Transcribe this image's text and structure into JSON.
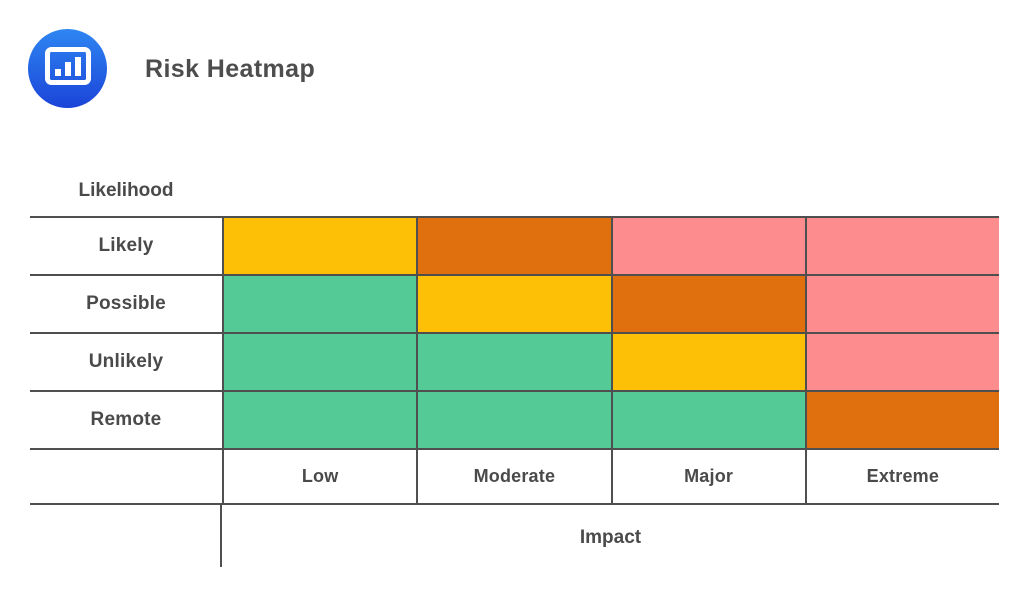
{
  "header": {
    "title": "Risk Heatmap"
  },
  "logo": {
    "icon": "bar-chart-icon",
    "gradient_top": "#2e86f2",
    "gradient_bottom": "#1b44d8",
    "glyph_color": "#ffffff"
  },
  "chart_data": {
    "type": "heatmap",
    "title": "Risk Heatmap",
    "xlabel": "Impact",
    "ylabel": "Likelihood",
    "x_categories": [
      "Low",
      "Moderate",
      "Major",
      "Extreme"
    ],
    "y_categories": [
      "Likely",
      "Possible",
      "Unlikely",
      "Remote"
    ],
    "cells": [
      [
        "medium",
        "high",
        "very-high",
        "very-high"
      ],
      [
        "low",
        "medium",
        "high",
        "very-high"
      ],
      [
        "low",
        "low",
        "medium",
        "very-high"
      ],
      [
        "low",
        "low",
        "low",
        "high"
      ]
    ],
    "palette": {
      "low": "#54cb96",
      "medium": "#fdc006",
      "high": "#e0700d",
      "very-high": "#fd8c8f"
    },
    "legend": "none",
    "grid_line_color": "#4f4f4f",
    "text_color": "#4a4a4a"
  }
}
